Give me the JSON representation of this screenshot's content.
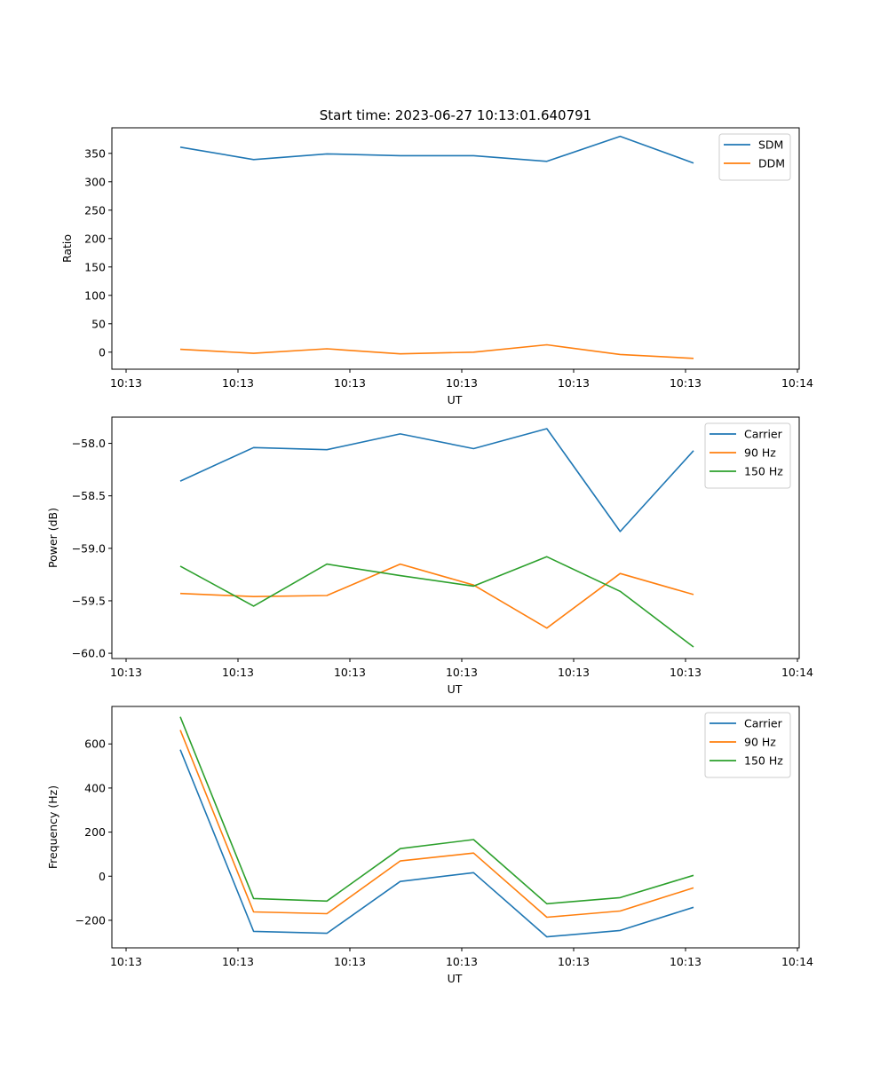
{
  "figure_title": "Start time: 2023-06-27 10:13:01.640791",
  "chart_data": [
    {
      "type": "line",
      "title": "Start time: 2023-06-27 10:13:01.640791",
      "xlabel": "UT",
      "ylabel": "Ratio",
      "x_tick_labels": [
        "10:13",
        "10:13",
        "10:13",
        "10:13",
        "10:13",
        "10:13",
        "10:14"
      ],
      "x_index": [
        0,
        1,
        2,
        3,
        4,
        5,
        6,
        7
      ],
      "ylim": [
        -30,
        395
      ],
      "y_ticks": [
        0,
        50,
        100,
        150,
        200,
        250,
        300,
        350
      ],
      "legend_position": "top-right",
      "series": [
        {
          "name": "SDM",
          "color": "#1f77b4",
          "values": [
            361,
            339,
            349,
            346,
            346,
            336,
            380,
            333
          ]
        },
        {
          "name": "DDM",
          "color": "#ff7f0e",
          "values": [
            5,
            -2,
            6,
            -3,
            0,
            13,
            -4,
            -11
          ]
        }
      ]
    },
    {
      "type": "line",
      "title": "",
      "xlabel": "UT",
      "ylabel": "Power (dB)",
      "x_tick_labels": [
        "10:13",
        "10:13",
        "10:13",
        "10:13",
        "10:13",
        "10:13",
        "10:14"
      ],
      "x_index": [
        0,
        1,
        2,
        3,
        4,
        5,
        6,
        7
      ],
      "ylim": [
        -60.05,
        -57.75
      ],
      "y_ticks": [
        -60.0,
        -59.5,
        -59.0,
        -58.5,
        -58.0
      ],
      "y_tick_labels": [
        "−60.0",
        "−59.5",
        "−59.0",
        "−58.5",
        "−58.0"
      ],
      "legend_position": "top-right",
      "series": [
        {
          "name": "Carrier",
          "color": "#1f77b4",
          "values": [
            -58.36,
            -58.04,
            -58.06,
            -57.91,
            -58.05,
            -57.86,
            -58.84,
            -58.07
          ]
        },
        {
          "name": "90 Hz",
          "color": "#ff7f0e",
          "values": [
            -59.43,
            -59.46,
            -59.45,
            -59.15,
            -59.35,
            -59.76,
            -59.24,
            -59.44
          ]
        },
        {
          "name": "150 Hz",
          "color": "#2ca02c",
          "values": [
            -59.17,
            -59.55,
            -59.15,
            -59.26,
            -59.36,
            -59.08,
            -59.41,
            -59.94
          ]
        }
      ]
    },
    {
      "type": "line",
      "title": "",
      "xlabel": "UT",
      "ylabel": "Frequency (Hz)",
      "x_tick_labels": [
        "10:13",
        "10:13",
        "10:13",
        "10:13",
        "10:13",
        "10:13",
        "10:14"
      ],
      "x_index": [
        0,
        1,
        2,
        3,
        4,
        5,
        6,
        7
      ],
      "ylim": [
        -325,
        770
      ],
      "y_ticks": [
        -200,
        0,
        200,
        400,
        600
      ],
      "y_tick_labels": [
        "−200",
        "0",
        "200",
        "400",
        "600"
      ],
      "legend_position": "top-right",
      "series": [
        {
          "name": "Carrier",
          "color": "#1f77b4",
          "values": [
            574,
            -250,
            -259,
            -24,
            16,
            -275,
            -246,
            -141
          ]
        },
        {
          "name": "90 Hz",
          "color": "#ff7f0e",
          "values": [
            663,
            -162,
            -170,
            69,
            105,
            -186,
            -158,
            -53
          ]
        },
        {
          "name": "150 Hz",
          "color": "#2ca02c",
          "values": [
            723,
            -101,
            -113,
            125,
            166,
            -125,
            -97,
            4
          ]
        }
      ]
    }
  ]
}
